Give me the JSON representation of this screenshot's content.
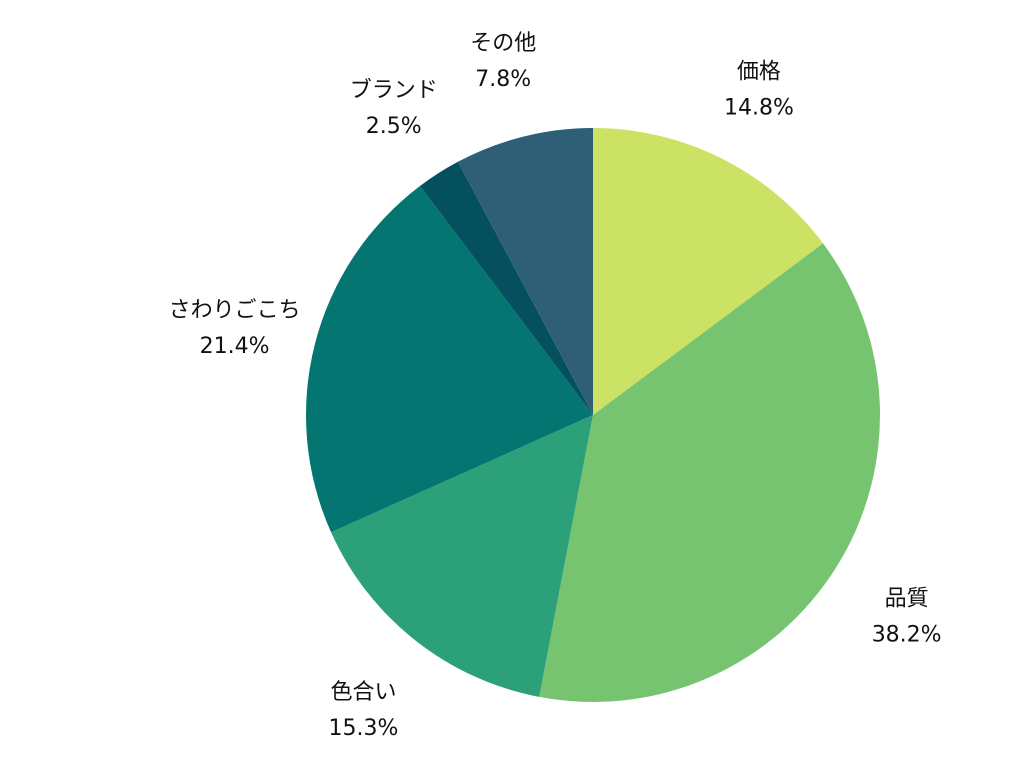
{
  "chart_data": {
    "type": "pie",
    "title": "",
    "start_angle_deg": 0,
    "direction": "clockwise",
    "slices": [
      {
        "label": "価格",
        "value": 14.8,
        "value_label": "14.8%",
        "color": "#cbe265"
      },
      {
        "label": "品質",
        "value": 38.2,
        "value_label": "38.2%",
        "color": "#77c470"
      },
      {
        "label": "色合い",
        "value": 15.3,
        "value_label": "15.3%",
        "color": "#2ca079"
      },
      {
        "label": "さわりごこち",
        "value": 21.4,
        "value_label": "21.4%",
        "color": "#047571"
      },
      {
        "label": "ブランド",
        "value": 2.5,
        "value_label": "2.5%",
        "color": "#04505e"
      },
      {
        "label": "その他",
        "value": 7.8,
        "value_label": "7.8%",
        "color": "#2e5f76"
      }
    ]
  }
}
